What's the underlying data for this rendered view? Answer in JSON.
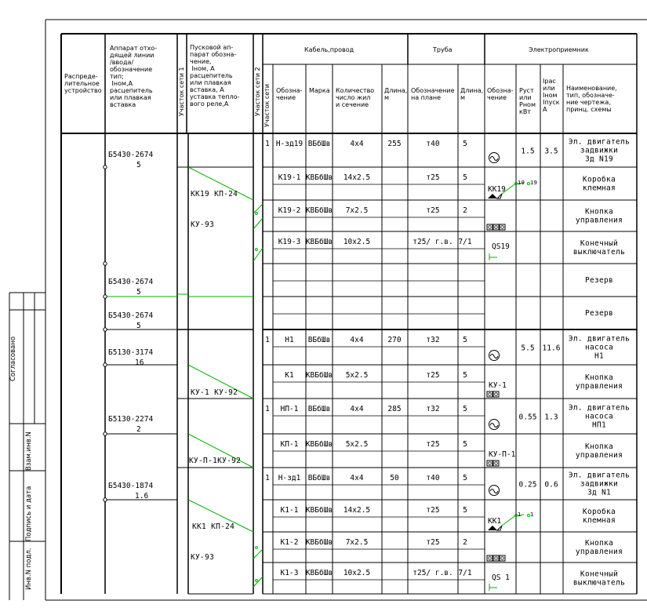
{
  "title_block": {
    "label_agreed": "Согласовано",
    "label_inv_podl": "Инв.N подл.",
    "label_sign_date": "Подпись и дата",
    "label_vzam": "Взам.инв.N"
  },
  "headers": {
    "distribution_device": "Распреде-\nлительное\nустройство",
    "apparatus": "Аппарат отхо-\nдящей линии\n/ввода/\nобозначение\nтип;\n   Iном,А\nрасцепитель\nили плавкая\nвставка",
    "section1": "Участок сети 1",
    "starter": "Пусковой ап-\nпарат обозна-\nчение,\n   Iном, А\nрасцепитель\nили плавкая\nвставка, А\nуставка тепло-\nвого реле,А",
    "section2": "Участок сети 2",
    "cable_group": "Кабель,провод",
    "section_net": "Участок сети",
    "cable_designation": "Обозна-\nчение",
    "cable_brand": "Марка",
    "cable_cores": "Количество\nчисло жил\nи сечение",
    "cable_length": "Длина,\nм",
    "pipe_group": "Труба",
    "pipe_designation": "Обозначение\nна плане",
    "pipe_length": "Длина,\nм",
    "receiver_group": "Электроприемник",
    "receiver_designation": "Обозна-\nчение",
    "receiver_power": "Руст\nили\nРном\nкВт",
    "receiver_current": "Iрас\nили\nIном\nIпуск\nА",
    "receiver_name": "Наименование,\nтип, обозначе-\nние чертежа,\nпринц. схемы"
  },
  "apparatus": [
    {
      "type": "Б5430-2674",
      "rating": "5"
    },
    {
      "type": "Б5430-2674",
      "rating": "5"
    },
    {
      "type": "Б5430-2674",
      "rating": "5"
    },
    {
      "type": "Б5130-3174",
      "rating": "16"
    },
    {
      "type": "Б5130-2274",
      "rating": "2"
    },
    {
      "type": "Б5430-1874",
      "rating": "1.6"
    }
  ],
  "starters": [
    {
      "main": "КК19  КП-24",
      "sub": "КУ-93"
    },
    {
      "main": "КУ-1  КУ-92",
      "sub": ""
    },
    {
      "main": "КУ-П-1КУ-92",
      "sub": ""
    },
    {
      "main": "КК1  КП-24",
      "sub": "КУ-93"
    }
  ],
  "rows": [
    {
      "sec": "1",
      "cable": "Н-зд19",
      "brand": "ВБбШв",
      "cores": "4х4",
      "length": "255",
      "pipe": "т40",
      "pipe_len": "5",
      "power": "1.5",
      "current": "3.5",
      "name": "Эл. двигатель\nзадвижки\nЗд N19",
      "symbol": "motor"
    },
    {
      "sec": "",
      "cable": "К19-1",
      "brand": "КВБбШв",
      "cores": "14х2.5",
      "length": "",
      "pipe": "т25",
      "pipe_len": "5",
      "power": "",
      "current": "",
      "name": "Коробка\nклемная",
      "symbol": "KK19"
    },
    {
      "sec": "",
      "cable": "К19-2",
      "brand": "КВБбШв",
      "cores": "7х2.5",
      "length": "",
      "pipe": "т25",
      "pipe_len": "2",
      "power": "",
      "current": "",
      "name": "Кнопка\nуправления",
      "symbol": "buttons3"
    },
    {
      "sec": "",
      "cable": "К19-3",
      "brand": "КВБбШв",
      "cores": "10х2.5",
      "length": "",
      "pipe": "т25/ г.в.",
      "pipe_len": "7/1",
      "power": "",
      "current": "",
      "name": "Конечный\nвыключатель",
      "symbol": "QS19"
    },
    {
      "sec": "",
      "cable": "",
      "brand": "",
      "cores": "",
      "length": "",
      "pipe": "",
      "pipe_len": "",
      "power": "",
      "current": "",
      "name": "Резерв",
      "symbol": ""
    },
    {
      "sec": "",
      "cable": "",
      "brand": "",
      "cores": "",
      "length": "",
      "pipe": "",
      "pipe_len": "",
      "power": "",
      "current": "",
      "name": "Резерв",
      "symbol": ""
    },
    {
      "sec": "1",
      "cable": "Н1",
      "brand": "ВБбШв",
      "cores": "4х4",
      "length": "270",
      "pipe": "т32",
      "pipe_len": "5",
      "power": "5.5",
      "current": "11.6",
      "name": "Эл. двигатель\nнасоса\nН1",
      "symbol": "motor"
    },
    {
      "sec": "",
      "cable": "К1",
      "brand": "КВБбШв",
      "cores": "5х2.5",
      "length": "",
      "pipe": "т25",
      "pipe_len": "5",
      "power": "",
      "current": "",
      "name": "Кнопка\nуправления",
      "symbol": "KU1"
    },
    {
      "sec": "1",
      "cable": "НП-1",
      "brand": "ВБбШв",
      "cores": "4х4",
      "length": "285",
      "pipe": "т32",
      "pipe_len": "5",
      "power": "0.55",
      "current": "1.3",
      "name": "Эл. двигатель\nнасоса\nНП1",
      "symbol": "motor"
    },
    {
      "sec": "",
      "cable": "КП-1",
      "brand": "КВБбШв",
      "cores": "5х2.5",
      "length": "",
      "pipe": "т25",
      "pipe_len": "5",
      "power": "",
      "current": "",
      "name": "Кнопка\nуправления",
      "symbol": "KUP1"
    },
    {
      "sec": "1",
      "cable": "Н-зд1",
      "brand": "ВБбШв",
      "cores": "4х4",
      "length": "50",
      "pipe": "т40",
      "pipe_len": "5",
      "power": "0.25",
      "current": "0.6",
      "name": "Эл. двигатель\nзадвижки\nЗд N1",
      "symbol": "motor"
    },
    {
      "sec": "",
      "cable": "К1-1",
      "brand": "КВБбШв",
      "cores": "14х2.5",
      "length": "",
      "pipe": "т25",
      "pipe_len": "5",
      "power": "",
      "current": "",
      "name": "Коробка\nклемная",
      "symbol": "KK1"
    },
    {
      "sec": "",
      "cable": "К1-2",
      "brand": "КВБбШв",
      "cores": "7х2.5",
      "length": "",
      "pipe": "т25",
      "pipe_len": "2",
      "power": "",
      "current": "",
      "name": "Кнопка\nуправления",
      "symbol": "buttons3"
    },
    {
      "sec": "",
      "cable": "К1-3",
      "brand": "КВБбШв",
      "cores": "10х2.5",
      "length": "",
      "pipe": "т25/ г.в.",
      "pipe_len": "7/1",
      "power": "",
      "current": "",
      "name": "Конечный\nвыключатель",
      "symbol": "QS1"
    }
  ],
  "symbol_labels": {
    "KK19": "КК19",
    "KK1": "КК1",
    "KU1": "КУ-1",
    "KUP1": "КУ-П-1",
    "QS19": "QS19",
    "QS1": "QS 1",
    "mark19": "19",
    "mark1": "1"
  },
  "colors": {
    "lines": "#000000",
    "green": "#00b000",
    "background": "#ffffff"
  }
}
